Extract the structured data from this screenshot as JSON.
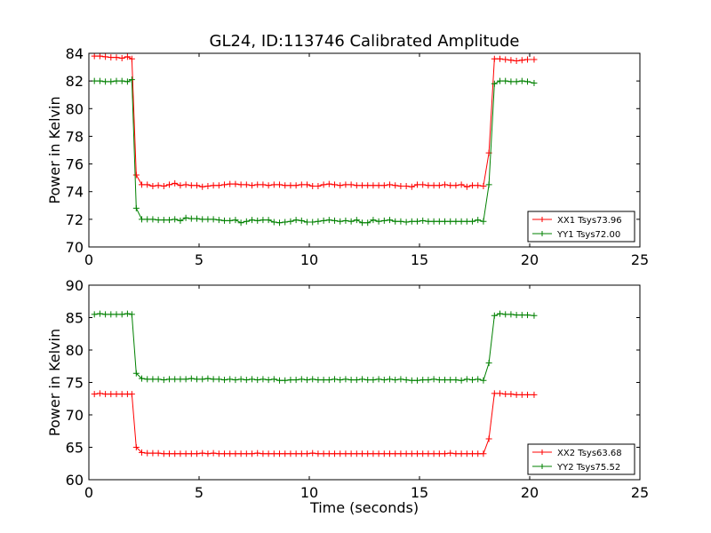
{
  "title": "GL24, ID:113746 Calibrated Amplitude",
  "chart_data": [
    {
      "type": "line",
      "title": "GL24, ID:113746 Calibrated Amplitude",
      "xlabel": "",
      "ylabel": "Power in Kelvin",
      "xlim": [
        0,
        25
      ],
      "ylim": [
        70,
        84
      ],
      "xticks": [
        "0",
        "5",
        "10",
        "15",
        "20",
        "25"
      ],
      "yticks": [
        "70",
        "72",
        "74",
        "76",
        "78",
        "80",
        "82",
        "84"
      ],
      "grid": false,
      "legend_position": "lower-right",
      "series": [
        {
          "name": "XX1 Tsys73.96",
          "color": "#ff0000",
          "x": [
            0.25,
            0.5,
            0.75,
            1.0,
            1.25,
            1.5,
            1.75,
            1.95,
            2.15,
            2.4,
            2.65,
            2.9,
            3.15,
            3.4,
            3.65,
            3.9,
            4.15,
            4.4,
            4.65,
            4.9,
            5.15,
            5.4,
            5.65,
            5.9,
            6.15,
            6.4,
            6.65,
            6.9,
            7.15,
            7.4,
            7.65,
            7.9,
            8.15,
            8.4,
            8.65,
            8.9,
            9.15,
            9.4,
            9.65,
            9.9,
            10.15,
            10.4,
            10.65,
            10.9,
            11.15,
            11.4,
            11.65,
            11.9,
            12.15,
            12.4,
            12.65,
            12.9,
            13.15,
            13.4,
            13.65,
            13.9,
            14.15,
            14.4,
            14.65,
            14.9,
            15.15,
            15.4,
            15.65,
            15.9,
            16.15,
            16.4,
            16.65,
            16.9,
            17.15,
            17.4,
            17.65,
            17.9,
            18.15,
            18.4,
            18.65,
            18.9,
            19.15,
            19.4,
            19.65,
            19.9,
            20.2
          ],
          "y": [
            83.8,
            83.8,
            83.75,
            83.7,
            83.7,
            83.65,
            83.75,
            83.6,
            75.2,
            74.5,
            74.5,
            74.4,
            74.45,
            74.4,
            74.5,
            74.6,
            74.45,
            74.5,
            74.45,
            74.45,
            74.35,
            74.4,
            74.45,
            74.45,
            74.5,
            74.55,
            74.55,
            74.5,
            74.5,
            74.45,
            74.5,
            74.5,
            74.45,
            74.5,
            74.5,
            74.45,
            74.45,
            74.45,
            74.5,
            74.5,
            74.4,
            74.4,
            74.5,
            74.55,
            74.5,
            74.45,
            74.5,
            74.5,
            74.45,
            74.45,
            74.45,
            74.45,
            74.45,
            74.45,
            74.5,
            74.45,
            74.4,
            74.4,
            74.35,
            74.5,
            74.5,
            74.45,
            74.45,
            74.45,
            74.5,
            74.45,
            74.45,
            74.5,
            74.35,
            74.45,
            74.45,
            74.4,
            76.8,
            83.6,
            83.6,
            83.55,
            83.5,
            83.45,
            83.5,
            83.55,
            83.55
          ]
        },
        {
          "name": "YY1 Tsys72.00",
          "color": "#008000",
          "x": [
            0.25,
            0.5,
            0.75,
            1.0,
            1.25,
            1.5,
            1.75,
            1.95,
            2.15,
            2.4,
            2.65,
            2.9,
            3.15,
            3.4,
            3.65,
            3.9,
            4.15,
            4.4,
            4.65,
            4.9,
            5.15,
            5.4,
            5.65,
            5.9,
            6.15,
            6.4,
            6.65,
            6.9,
            7.15,
            7.4,
            7.65,
            7.9,
            8.15,
            8.4,
            8.65,
            8.9,
            9.15,
            9.4,
            9.65,
            9.9,
            10.15,
            10.4,
            10.65,
            10.9,
            11.15,
            11.4,
            11.65,
            11.9,
            12.15,
            12.4,
            12.65,
            12.9,
            13.15,
            13.4,
            13.65,
            13.9,
            14.15,
            14.4,
            14.65,
            14.9,
            15.15,
            15.4,
            15.65,
            15.9,
            16.15,
            16.4,
            16.65,
            16.9,
            17.15,
            17.4,
            17.65,
            17.9,
            18.15,
            18.4,
            18.65,
            18.9,
            19.15,
            19.4,
            19.65,
            19.9,
            20.2
          ],
          "y": [
            82.0,
            82.0,
            81.95,
            81.95,
            82.0,
            82.0,
            81.95,
            82.1,
            72.8,
            72.0,
            72.0,
            72.0,
            71.95,
            71.95,
            71.95,
            72.0,
            71.9,
            72.1,
            72.05,
            72.05,
            72.0,
            72.0,
            72.0,
            71.95,
            71.9,
            71.9,
            71.95,
            71.75,
            71.85,
            71.95,
            71.9,
            71.95,
            71.95,
            71.8,
            71.75,
            71.8,
            71.85,
            71.95,
            71.9,
            71.8,
            71.8,
            71.85,
            71.9,
            71.95,
            71.9,
            71.85,
            71.9,
            71.85,
            71.95,
            71.75,
            71.75,
            71.95,
            71.85,
            71.9,
            71.95,
            71.85,
            71.85,
            71.8,
            71.85,
            71.85,
            71.9,
            71.85,
            71.85,
            71.85,
            71.85,
            71.85,
            71.85,
            71.85,
            71.85,
            71.85,
            71.95,
            71.85,
            74.5,
            81.8,
            82.0,
            82.0,
            81.95,
            81.95,
            82.0,
            81.95,
            81.85
          ]
        }
      ]
    },
    {
      "type": "line",
      "title": "",
      "xlabel": "Time (seconds)",
      "ylabel": "Power in Kelvin",
      "xlim": [
        0,
        25
      ],
      "ylim": [
        60,
        90
      ],
      "xticks": [
        "0",
        "5",
        "10",
        "15",
        "20",
        "25"
      ],
      "yticks": [
        "60",
        "65",
        "70",
        "75",
        "80",
        "85",
        "90"
      ],
      "grid": false,
      "legend_position": "lower-right",
      "series": [
        {
          "name": "XX2 Tsys63.68",
          "color": "#ff0000",
          "x": [
            0.25,
            0.5,
            0.75,
            1.0,
            1.25,
            1.5,
            1.75,
            1.95,
            2.15,
            2.4,
            2.65,
            2.9,
            3.15,
            3.4,
            3.65,
            3.9,
            4.15,
            4.4,
            4.65,
            4.9,
            5.15,
            5.4,
            5.65,
            5.9,
            6.15,
            6.4,
            6.65,
            6.9,
            7.15,
            7.4,
            7.65,
            7.9,
            8.15,
            8.4,
            8.65,
            8.9,
            9.15,
            9.4,
            9.65,
            9.9,
            10.15,
            10.4,
            10.65,
            10.9,
            11.15,
            11.4,
            11.65,
            11.9,
            12.15,
            12.4,
            12.65,
            12.9,
            13.15,
            13.4,
            13.65,
            13.9,
            14.15,
            14.4,
            14.65,
            14.9,
            15.15,
            15.4,
            15.65,
            15.9,
            16.15,
            16.4,
            16.65,
            16.9,
            17.15,
            17.4,
            17.65,
            17.9,
            18.15,
            18.4,
            18.65,
            18.9,
            19.15,
            19.4,
            19.65,
            19.9,
            20.2
          ],
          "y": [
            73.2,
            73.3,
            73.2,
            73.2,
            73.2,
            73.2,
            73.2,
            73.2,
            65.0,
            64.2,
            64.1,
            64.1,
            64.1,
            64.0,
            64.0,
            64.0,
            64.0,
            64.0,
            64.0,
            64.0,
            64.1,
            64.0,
            64.1,
            64.0,
            64.0,
            64.0,
            64.0,
            64.0,
            64.0,
            64.0,
            64.1,
            64.0,
            64.0,
            64.0,
            64.0,
            64.0,
            64.0,
            64.0,
            64.0,
            64.0,
            64.1,
            64.0,
            64.0,
            64.0,
            64.0,
            64.0,
            64.0,
            64.0,
            64.0,
            64.0,
            64.0,
            64.0,
            64.0,
            64.0,
            64.0,
            64.0,
            64.0,
            64.0,
            64.0,
            64.0,
            64.0,
            64.0,
            64.0,
            64.0,
            64.0,
            64.1,
            64.0,
            64.0,
            64.0,
            64.0,
            64.0,
            64.0,
            66.3,
            73.3,
            73.3,
            73.2,
            73.2,
            73.1,
            73.1,
            73.1,
            73.1
          ]
        },
        {
          "name": "YY2 Tsys75.52",
          "color": "#008000",
          "x": [
            0.25,
            0.5,
            0.75,
            1.0,
            1.25,
            1.5,
            1.75,
            1.95,
            2.15,
            2.4,
            2.65,
            2.9,
            3.15,
            3.4,
            3.65,
            3.9,
            4.15,
            4.4,
            4.65,
            4.9,
            5.15,
            5.4,
            5.65,
            5.9,
            6.15,
            6.4,
            6.65,
            6.9,
            7.15,
            7.4,
            7.65,
            7.9,
            8.15,
            8.4,
            8.65,
            8.9,
            9.15,
            9.4,
            9.65,
            9.9,
            10.15,
            10.4,
            10.65,
            10.9,
            11.15,
            11.4,
            11.65,
            11.9,
            12.15,
            12.4,
            12.65,
            12.9,
            13.15,
            13.4,
            13.65,
            13.9,
            14.15,
            14.4,
            14.65,
            14.9,
            15.15,
            15.4,
            15.65,
            15.9,
            16.15,
            16.4,
            16.65,
            16.9,
            17.15,
            17.4,
            17.65,
            17.9,
            18.15,
            18.4,
            18.65,
            18.9,
            19.15,
            19.4,
            19.65,
            19.9,
            20.2
          ],
          "y": [
            85.5,
            85.6,
            85.5,
            85.5,
            85.5,
            85.5,
            85.6,
            85.5,
            76.4,
            75.6,
            75.5,
            75.5,
            75.5,
            75.4,
            75.5,
            75.5,
            75.5,
            75.5,
            75.6,
            75.5,
            75.5,
            75.6,
            75.5,
            75.5,
            75.4,
            75.5,
            75.4,
            75.5,
            75.4,
            75.5,
            75.4,
            75.5,
            75.4,
            75.5,
            75.3,
            75.3,
            75.4,
            75.4,
            75.5,
            75.4,
            75.5,
            75.4,
            75.4,
            75.4,
            75.5,
            75.4,
            75.5,
            75.4,
            75.4,
            75.5,
            75.4,
            75.4,
            75.5,
            75.4,
            75.5,
            75.4,
            75.5,
            75.4,
            75.3,
            75.3,
            75.4,
            75.4,
            75.5,
            75.4,
            75.4,
            75.4,
            75.4,
            75.3,
            75.5,
            75.4,
            75.5,
            75.3,
            78.0,
            85.3,
            85.6,
            85.5,
            85.5,
            85.4,
            85.4,
            85.4,
            85.3
          ]
        }
      ]
    }
  ]
}
